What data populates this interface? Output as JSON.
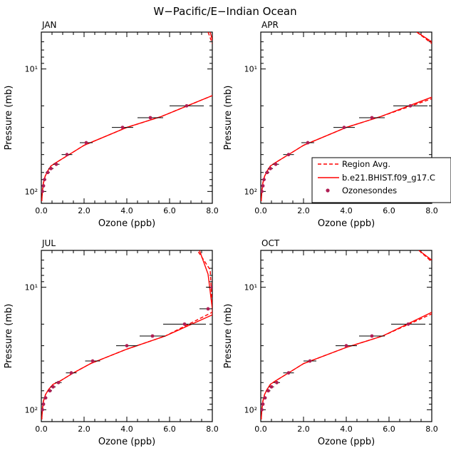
{
  "figure_title": "W−Pacific/E−Indian Ocean",
  "colors": {
    "model": "#ff0000",
    "marker": "#b01e54",
    "axis": "#000000"
  },
  "legend": {
    "location": "inside panel APR, lower-right",
    "entries": [
      "Region Avg.",
      "b.e21.BHIST.f09_g17.C",
      "Ozonesondes"
    ]
  },
  "chart_data": [
    {
      "type": "line",
      "panel": "JAN",
      "xlabel": "Ozone (ppb)",
      "ylabel": "Pressure (mb)",
      "xlim": [
        0,
        8
      ],
      "ylim": [
        125,
        5
      ],
      "yscale": "log",
      "x_ticks": [
        "0.0",
        "2.0",
        "4.0",
        "6.0",
        "8.0"
      ],
      "y_ticks": [
        "10¹",
        "10²"
      ],
      "series": [
        {
          "name": "Region Avg.",
          "style": "dashed",
          "points": [
            [
              0.02,
              120
            ],
            [
              0.05,
              100
            ],
            [
              0.1,
              85
            ],
            [
              0.18,
              75
            ],
            [
              0.3,
              68
            ],
            [
              0.45,
              62
            ],
            [
              0.7,
              58
            ],
            [
              1.3,
              50
            ],
            [
              2.0,
              42
            ],
            [
              4.0,
              30
            ],
            [
              5.6,
              24.5
            ],
            [
              8.0,
              16.5
            ]
          ]
        },
        {
          "name": "b.e21.BHIST.f09_g17.C",
          "style": "solid",
          "points": [
            [
              0.02,
              120
            ],
            [
              0.05,
              100
            ],
            [
              0.1,
              85
            ],
            [
              0.18,
              75
            ],
            [
              0.3,
              68
            ],
            [
              0.45,
              62
            ],
            [
              0.7,
              58
            ],
            [
              1.3,
              50
            ],
            [
              2.0,
              42
            ],
            [
              4.0,
              30
            ],
            [
              5.6,
              24.5
            ],
            [
              8.0,
              16.5
            ]
          ]
        },
        {
          "name": "Region Avg. (upper)",
          "style": "dashed",
          "points": [
            [
              7.8,
              5
            ],
            [
              8.0,
              6.2
            ]
          ]
        },
        {
          "name": "b.e21.BHIST.f09_g17.C (upper)",
          "style": "solid",
          "points": [
            [
              7.9,
              5
            ],
            [
              8.0,
              5.8
            ]
          ]
        }
      ],
      "ozonesondes": [
        {
          "x": 0.05,
          "p": 100,
          "err": 0.05
        },
        {
          "x": 0.1,
          "p": 90,
          "err": 0.05
        },
        {
          "x": 0.15,
          "p": 80,
          "err": 0.08
        },
        {
          "x": 0.3,
          "p": 70,
          "err": 0.1
        },
        {
          "x": 0.45,
          "p": 65,
          "err": 0.12
        },
        {
          "x": 0.7,
          "p": 60,
          "err": 0.15
        },
        {
          "x": 1.2,
          "p": 50,
          "err": 0.25
        },
        {
          "x": 2.1,
          "p": 40,
          "err": 0.3
        },
        {
          "x": 3.8,
          "p": 30,
          "err": 0.5
        },
        {
          "x": 5.1,
          "p": 25,
          "err": 0.6
        },
        {
          "x": 6.8,
          "p": 20,
          "err": 0.8
        }
      ]
    },
    {
      "type": "line",
      "panel": "APR",
      "xlabel": "Ozone (ppb)",
      "ylabel": "Pressure (mb)",
      "xlim": [
        0,
        8
      ],
      "ylim": [
        125,
        5
      ],
      "yscale": "log",
      "x_ticks": [
        "0.0",
        "2.0",
        "4.0",
        "6.0",
        "8.0"
      ],
      "y_ticks": [
        "10¹",
        "10²"
      ],
      "series": [
        {
          "name": "Region Avg.",
          "style": "dashed",
          "points": [
            [
              0.02,
              120
            ],
            [
              0.05,
              100
            ],
            [
              0.1,
              85
            ],
            [
              0.18,
              75
            ],
            [
              0.3,
              68
            ],
            [
              0.45,
              62
            ],
            [
              0.7,
              58
            ],
            [
              1.3,
              50
            ],
            [
              2.0,
              42
            ],
            [
              4.0,
              30
            ],
            [
              5.6,
              24.5
            ],
            [
              8.0,
              17.5
            ]
          ]
        },
        {
          "name": "b.e21.BHIST.f09_g17.C",
          "style": "solid",
          "points": [
            [
              0.02,
              120
            ],
            [
              0.05,
              100
            ],
            [
              0.1,
              85
            ],
            [
              0.18,
              75
            ],
            [
              0.3,
              68
            ],
            [
              0.45,
              62
            ],
            [
              0.7,
              58
            ],
            [
              1.3,
              50
            ],
            [
              2.0,
              42
            ],
            [
              4.0,
              30
            ],
            [
              5.6,
              24.5
            ],
            [
              8.0,
              17
            ]
          ]
        },
        {
          "name": "Region Avg. (upper)",
          "style": "dashed",
          "points": [
            [
              7.3,
              5
            ],
            [
              8.0,
              6.2
            ]
          ]
        },
        {
          "name": "b.e21.BHIST.f09_g17.C (upper)",
          "style": "solid",
          "points": [
            [
              7.3,
              5
            ],
            [
              8.0,
              6.0
            ]
          ]
        }
      ],
      "ozonesondes": [
        {
          "x": 0.05,
          "p": 100,
          "err": 0.05
        },
        {
          "x": 0.1,
          "p": 90,
          "err": 0.05
        },
        {
          "x": 0.15,
          "p": 80,
          "err": 0.08
        },
        {
          "x": 0.3,
          "p": 70,
          "err": 0.1
        },
        {
          "x": 0.45,
          "p": 65,
          "err": 0.12
        },
        {
          "x": 0.7,
          "p": 60,
          "err": 0.15
        },
        {
          "x": 1.3,
          "p": 50,
          "err": 0.25
        },
        {
          "x": 2.2,
          "p": 40,
          "err": 0.3
        },
        {
          "x": 3.9,
          "p": 30,
          "err": 0.5
        },
        {
          "x": 5.2,
          "p": 25,
          "err": 0.6
        },
        {
          "x": 7.0,
          "p": 20,
          "err": 0.8
        }
      ]
    },
    {
      "type": "line",
      "panel": "JUL",
      "xlabel": "Ozone (ppb)",
      "ylabel": "Pressure (mb)",
      "xlim": [
        0,
        8
      ],
      "ylim": [
        125,
        5
      ],
      "yscale": "log",
      "x_ticks": [
        "0.0",
        "2.0",
        "4.0",
        "6.0",
        "8.0"
      ],
      "y_ticks": [
        "10¹",
        "10²"
      ],
      "series": [
        {
          "name": "Region Avg.",
          "style": "dashed",
          "points": [
            [
              0.02,
              120
            ],
            [
              0.05,
              100
            ],
            [
              0.1,
              85
            ],
            [
              0.2,
              75
            ],
            [
              0.35,
              68
            ],
            [
              0.55,
              62
            ],
            [
              0.9,
              58
            ],
            [
              1.5,
              50
            ],
            [
              2.3,
              42
            ],
            [
              4.0,
              32
            ],
            [
              5.8,
              25
            ],
            [
              8.0,
              16
            ],
            [
              8.0,
              15
            ],
            [
              7.9,
              7.2
            ],
            [
              7.3,
              5
            ]
          ]
        },
        {
          "name": "b.e21.BHIST.f09_g17.C",
          "style": "solid",
          "points": [
            [
              0.02,
              120
            ],
            [
              0.05,
              100
            ],
            [
              0.1,
              85
            ],
            [
              0.2,
              75
            ],
            [
              0.35,
              68
            ],
            [
              0.55,
              62
            ],
            [
              0.9,
              58
            ],
            [
              1.5,
              50
            ],
            [
              2.3,
              42
            ],
            [
              4.0,
              32
            ],
            [
              5.8,
              25
            ],
            [
              8.0,
              16.8
            ],
            [
              8.0,
              15
            ],
            [
              7.8,
              7.8
            ],
            [
              7.4,
              5
            ]
          ]
        }
      ],
      "ozonesondes": [
        {
          "x": 0.05,
          "p": 100,
          "err": 0.05
        },
        {
          "x": 0.1,
          "p": 90,
          "err": 0.05
        },
        {
          "x": 0.2,
          "p": 80,
          "err": 0.08
        },
        {
          "x": 0.4,
          "p": 70,
          "err": 0.1
        },
        {
          "x": 0.55,
          "p": 65,
          "err": 0.12
        },
        {
          "x": 0.8,
          "p": 60,
          "err": 0.15
        },
        {
          "x": 1.4,
          "p": 50,
          "err": 0.25
        },
        {
          "x": 2.4,
          "p": 40,
          "err": 0.35
        },
        {
          "x": 4.0,
          "p": 30,
          "err": 0.5
        },
        {
          "x": 5.2,
          "p": 25,
          "err": 0.6
        },
        {
          "x": 6.7,
          "p": 20,
          "err": 1.0
        },
        {
          "x": 7.8,
          "p": 15,
          "err": 0.4
        },
        {
          "x": 8.0,
          "p": 10,
          "err": 0.3
        }
      ]
    },
    {
      "type": "line",
      "panel": "OCT",
      "xlabel": "Ozone (ppb)",
      "ylabel": "Pressure (mb)",
      "xlim": [
        0,
        8
      ],
      "ylim": [
        125,
        5
      ],
      "yscale": "log",
      "x_ticks": [
        "0.0",
        "2.0",
        "4.0",
        "6.0",
        "8.0"
      ],
      "y_ticks": [
        "10¹",
        "10²"
      ],
      "series": [
        {
          "name": "Region Avg.",
          "style": "dashed",
          "points": [
            [
              0.02,
              120
            ],
            [
              0.05,
              100
            ],
            [
              0.1,
              85
            ],
            [
              0.18,
              75
            ],
            [
              0.3,
              68
            ],
            [
              0.45,
              62
            ],
            [
              0.7,
              58
            ],
            [
              1.3,
              50
            ],
            [
              2.0,
              42
            ],
            [
              4.0,
              31
            ],
            [
              5.7,
              25
            ],
            [
              8.0,
              16.5
            ]
          ]
        },
        {
          "name": "b.e21.BHIST.f09_g17.C",
          "style": "solid",
          "points": [
            [
              0.02,
              120
            ],
            [
              0.05,
              100
            ],
            [
              0.1,
              85
            ],
            [
              0.18,
              75
            ],
            [
              0.3,
              68
            ],
            [
              0.45,
              62
            ],
            [
              0.7,
              58
            ],
            [
              1.3,
              50
            ],
            [
              2.0,
              42
            ],
            [
              4.0,
              31
            ],
            [
              5.7,
              25
            ],
            [
              8.0,
              16
            ]
          ]
        },
        {
          "name": "Region Avg. (upper)",
          "style": "dashed",
          "points": [
            [
              7.4,
              5
            ],
            [
              8.0,
              6.2
            ]
          ]
        },
        {
          "name": "b.e21.BHIST.f09_g17.C (upper)",
          "style": "solid",
          "points": [
            [
              7.4,
              5
            ],
            [
              8.0,
              6.0
            ]
          ]
        }
      ],
      "ozonesondes": [
        {
          "x": 0.05,
          "p": 100,
          "err": 0.05
        },
        {
          "x": 0.1,
          "p": 90,
          "err": 0.05
        },
        {
          "x": 0.2,
          "p": 80,
          "err": 0.08
        },
        {
          "x": 0.35,
          "p": 70,
          "err": 0.1
        },
        {
          "x": 0.5,
          "p": 65,
          "err": 0.12
        },
        {
          "x": 0.75,
          "p": 60,
          "err": 0.15
        },
        {
          "x": 1.3,
          "p": 50,
          "err": 0.25
        },
        {
          "x": 2.3,
          "p": 40,
          "err": 0.3
        },
        {
          "x": 4.0,
          "p": 30,
          "err": 0.5
        },
        {
          "x": 5.2,
          "p": 25,
          "err": 0.6
        },
        {
          "x": 6.9,
          "p": 20,
          "err": 0.8
        }
      ]
    }
  ]
}
